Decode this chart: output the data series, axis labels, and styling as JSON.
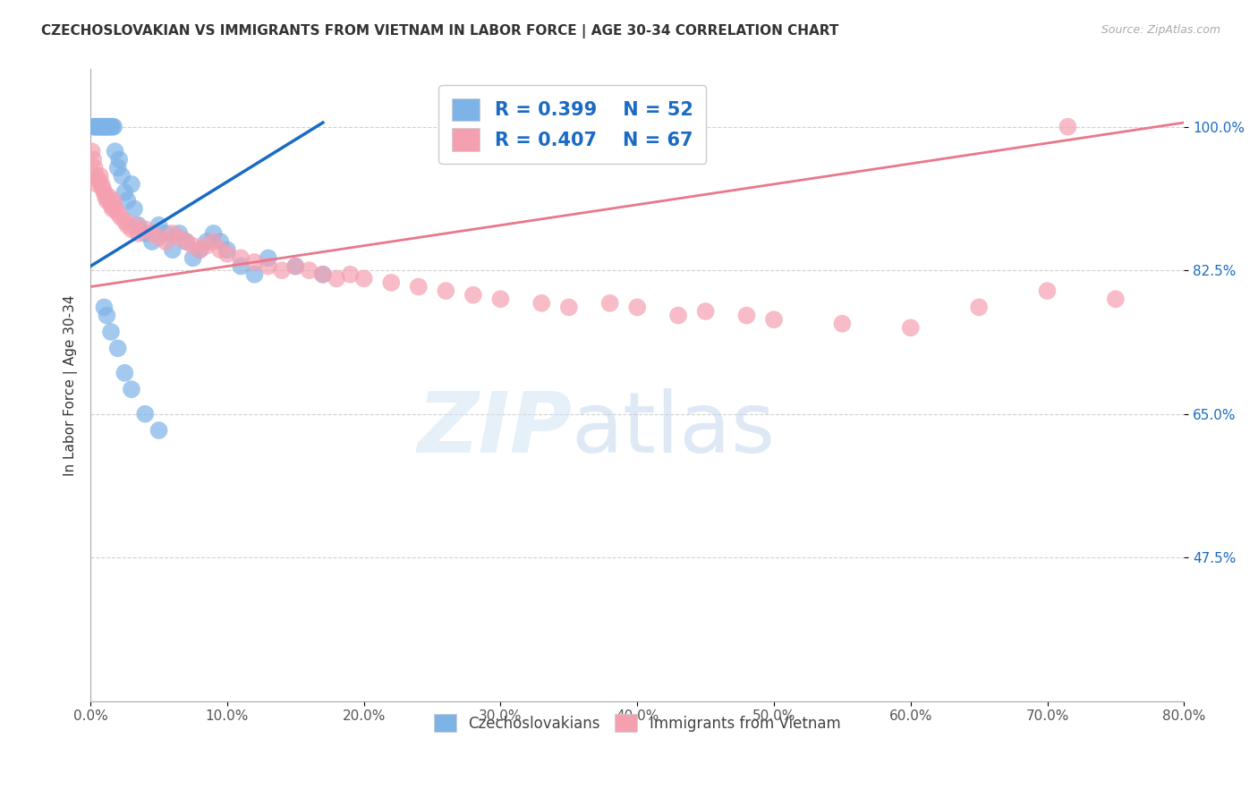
{
  "title": "CZECHOSLOVAKIAN VS IMMIGRANTS FROM VIETNAM IN LABOR FORCE | AGE 30-34 CORRELATION CHART",
  "source": "Source: ZipAtlas.com",
  "ylabel": "In Labor Force | Age 30-34",
  "xlim": [
    0.0,
    80.0
  ],
  "ylim": [
    30.0,
    107.0
  ],
  "yticks": [
    47.5,
    65.0,
    82.5,
    100.0
  ],
  "xticks": [
    0.0,
    10.0,
    20.0,
    30.0,
    40.0,
    50.0,
    60.0,
    70.0,
    80.0
  ],
  "blue_R": 0.399,
  "blue_N": 52,
  "pink_R": 0.407,
  "pink_N": 67,
  "blue_color": "#7eb3e8",
  "pink_color": "#f4a0b0",
  "blue_line_color": "#1a6bc4",
  "pink_line_color": "#e8788a",
  "legend_text_color": "#1a6bc4",
  "blue_scatter_x": [
    0.2,
    0.3,
    0.4,
    0.5,
    0.6,
    0.7,
    0.8,
    0.9,
    1.0,
    1.0,
    1.1,
    1.2,
    1.3,
    1.4,
    1.5,
    1.6,
    1.7,
    1.8,
    2.0,
    2.1,
    2.3,
    2.5,
    2.7,
    3.0,
    3.2,
    3.5,
    4.0,
    4.5,
    5.0,
    5.5,
    6.0,
    6.5,
    7.0,
    7.5,
    8.0,
    8.5,
    9.0,
    9.5,
    10.0,
    11.0,
    12.0,
    13.0,
    15.0,
    17.0,
    1.0,
    1.2,
    1.5,
    2.0,
    2.5,
    3.0,
    4.0,
    5.0
  ],
  "blue_scatter_y": [
    100.0,
    100.0,
    100.0,
    100.0,
    100.0,
    100.0,
    100.0,
    100.0,
    100.0,
    100.0,
    100.0,
    100.0,
    100.0,
    100.0,
    100.0,
    100.0,
    100.0,
    97.0,
    95.0,
    96.0,
    94.0,
    92.0,
    91.0,
    93.0,
    90.0,
    88.0,
    87.0,
    86.0,
    88.0,
    87.0,
    85.0,
    87.0,
    86.0,
    84.0,
    85.0,
    86.0,
    87.0,
    86.0,
    85.0,
    83.0,
    82.0,
    84.0,
    83.0,
    82.0,
    78.0,
    77.0,
    75.0,
    73.0,
    70.0,
    68.0,
    65.0,
    63.0
  ],
  "pink_scatter_x": [
    0.1,
    0.2,
    0.3,
    0.4,
    0.5,
    0.6,
    0.7,
    0.8,
    0.9,
    1.0,
    1.1,
    1.2,
    1.3,
    1.4,
    1.5,
    1.6,
    1.7,
    1.8,
    2.0,
    2.2,
    2.5,
    2.7,
    3.0,
    3.3,
    3.5,
    4.0,
    4.5,
    5.0,
    5.5,
    6.0,
    6.5,
    7.0,
    7.5,
    8.0,
    8.5,
    9.0,
    9.5,
    10.0,
    11.0,
    12.0,
    13.0,
    14.0,
    15.0,
    16.0,
    17.0,
    18.0,
    19.0,
    20.0,
    22.0,
    24.0,
    26.0,
    28.0,
    30.0,
    33.0,
    35.0,
    38.0,
    40.0,
    43.0,
    45.0,
    48.0,
    50.0,
    55.0,
    60.0,
    65.0,
    70.0,
    71.5,
    75.0
  ],
  "pink_scatter_y": [
    97.0,
    96.0,
    95.0,
    94.0,
    93.0,
    93.5,
    94.0,
    93.0,
    92.5,
    92.0,
    91.5,
    91.0,
    91.5,
    91.0,
    90.5,
    90.0,
    91.0,
    90.0,
    89.5,
    89.0,
    88.5,
    88.0,
    87.5,
    88.0,
    87.0,
    87.5,
    87.0,
    86.5,
    86.0,
    87.0,
    86.5,
    86.0,
    85.5,
    85.0,
    85.5,
    86.0,
    85.0,
    84.5,
    84.0,
    83.5,
    83.0,
    82.5,
    83.0,
    82.5,
    82.0,
    81.5,
    82.0,
    81.5,
    81.0,
    80.5,
    80.0,
    79.5,
    79.0,
    78.5,
    78.0,
    78.5,
    78.0,
    77.0,
    77.5,
    77.0,
    76.5,
    76.0,
    75.5,
    78.0,
    80.0,
    100.0,
    79.0
  ],
  "blue_trend_x": [
    0.0,
    17.0
  ],
  "blue_trend_y": [
    83.0,
    100.5
  ],
  "pink_trend_x": [
    0.0,
    80.0
  ],
  "pink_trend_y": [
    80.5,
    100.5
  ]
}
